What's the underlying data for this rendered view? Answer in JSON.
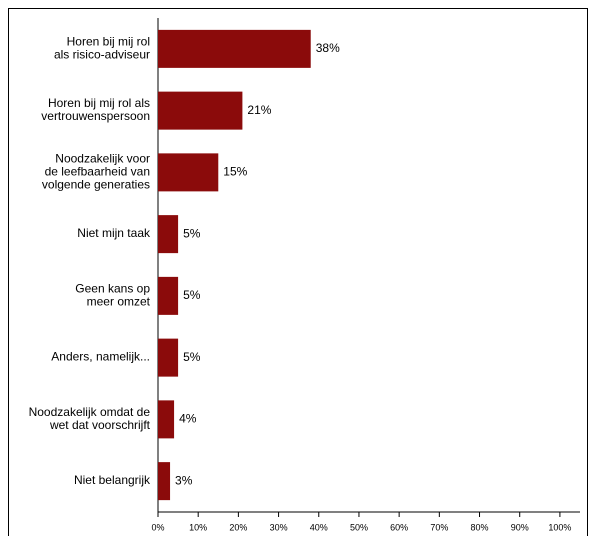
{
  "chart_data": {
    "type": "barh",
    "categories": [
      "Horen bij mij rol\nals risico-adviseur",
      "Horen bij mij rol als\nvertrouwenspersoon",
      "Noodzakelijk voor\nde leefbaarheid van\nvolgende generaties",
      "Niet mijn taak",
      "Geen kans op\nmeer omzet",
      "Anders, namelijk...",
      "Noodzakelijk omdat de\nwet dat voorschrijft",
      "Niet belangrijk"
    ],
    "values": [
      38,
      21,
      15,
      5,
      5,
      5,
      4,
      3
    ],
    "value_labels": [
      "38%",
      "21%",
      "15%",
      "5%",
      "5%",
      "5%",
      "4%",
      "3%"
    ],
    "color": "#8b0b0b",
    "xlim": [
      0,
      105
    ],
    "xticks": [
      {
        "value": 0,
        "label": "0%"
      },
      {
        "value": 10,
        "label": "10%"
      },
      {
        "value": 20,
        "label": "20%"
      },
      {
        "value": 30,
        "label": "30%"
      },
      {
        "value": 40,
        "label": "40%"
      },
      {
        "value": 50,
        "label": "50%"
      },
      {
        "value": 60,
        "label": "60%"
      },
      {
        "value": 70,
        "label": "70%"
      },
      {
        "value": 80,
        "label": "80%"
      },
      {
        "value": 90,
        "label": "90%"
      },
      {
        "value": 100,
        "label": "100%"
      }
    ]
  }
}
